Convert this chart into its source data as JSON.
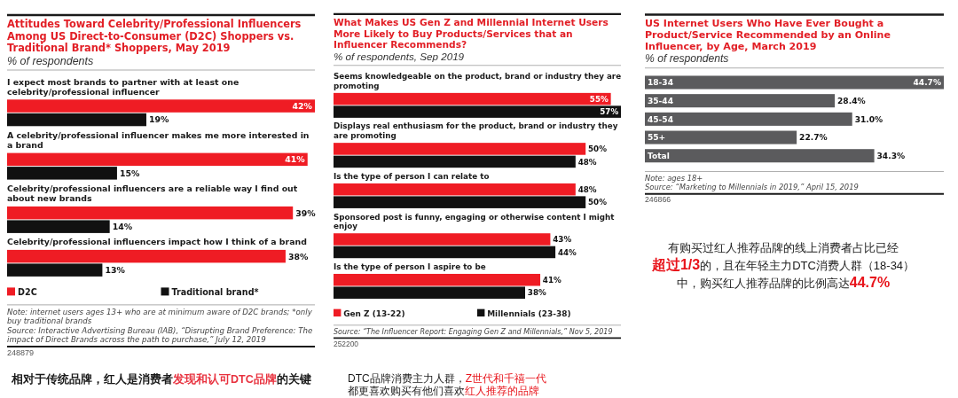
{
  "chart_data": [
    {
      "type": "bar",
      "orientation": "horizontal",
      "title": "Attitudes Toward Celebrity/Professional Influencers Among US Direct-to-Consumer (D2C) Shoppers vs. Traditional Brand* Shoppers, May 2019",
      "subtitle": "% of respondents",
      "categories": [
        "I expect most brands to partner with at least one celebrity/professional influencer",
        "A celebrity/professional influencer makes me more interested in a brand",
        "Celebrity/professional influencers are a reliable way I find out about new brands",
        "Celebrity/professional influencers impact how I think of a brand"
      ],
      "series": [
        {
          "name": "D2C",
          "color": "#ef1c24",
          "values": [
            42,
            41,
            39,
            38
          ],
          "value_labels": [
            "42%",
            "41%",
            "39%",
            "38%"
          ]
        },
        {
          "name": "Traditional brand*",
          "color": "#111111",
          "values": [
            19,
            15,
            14,
            13
          ],
          "value_labels": [
            "19%",
            "15%",
            "14%",
            "13%"
          ]
        }
      ],
      "legend": "bottom",
      "annotations": [
        "Note: internet users ages 13+ who are at minimum aware of D2C brands; *only buy traditional brands",
        "Source: Interactive Advertising Bureau (IAB), “Disrupting Brand Preference: The impact of Direct Brands across the path to purchase,” July 12, 2019",
        "248879",
        "相对于传统品牌，红人是消费者",
        "发现和认可DTC品牌",
        "的关键"
      ]
    },
    {
      "type": "bar",
      "orientation": "horizontal",
      "title": "What Makes US Gen Z and Millennial Internet Users More Likely to Buy Products/Services that an Influencer Recommends?",
      "subtitle": "% of respondents, Sep 2019",
      "categories": [
        "Seems knowledgeable on the product, brand or industry they are promoting",
        "Displays real enthusiasm for the product, brand or industry they are promoting",
        "Is the type of person I can relate to",
        "Sponsored post is funny, engaging or otherwise content I might enjoy",
        "Is the type of person I aspire to be"
      ],
      "series": [
        {
          "name": "Gen Z (13-22)",
          "color": "#ef1c24",
          "values": [
            55,
            50,
            48,
            43,
            41
          ],
          "value_labels": [
            "55%",
            "50%",
            "48%",
            "43%",
            "41%"
          ]
        },
        {
          "name": "Millennials (23-38)",
          "color": "#111111",
          "values": [
            57,
            48,
            50,
            44,
            38
          ],
          "value_labels": [
            "57%",
            "48%",
            "50%",
            "44%",
            "38%"
          ]
        }
      ],
      "legend": "bottom",
      "annotations": [
        "Source: “The Influencer Report: Engaging Gen Z and Millennials,” Nov 5, 2019",
        "252200",
        "DTC品牌消费主力人群，",
        "Z世代和千禧一代",
        "都更喜欢购买有他们喜欢",
        "红人推荐的品牌"
      ]
    },
    {
      "type": "bar",
      "orientation": "horizontal",
      "title": "US Internet Users Who Have Ever Bought a Product/Service Recommended by an Online Influencer, by Age, March 2019",
      "subtitle": "% of respondents",
      "categories": [
        "18-34",
        "35-44",
        "45-54",
        "55+",
        "Total"
      ],
      "values": [
        44.7,
        28.4,
        31.0,
        22.7,
        34.3
      ],
      "value_labels": [
        "44.7%",
        "28.4%",
        "31.0%",
        "22.7%",
        "34.3%"
      ],
      "color": "#5b5b5d",
      "annotations": [
        "Note: ages 18+",
        "Source: “Marketing to Millennials in 2019,” April 15, 2019",
        "246866",
        "有购买过红人推荐品牌的线上消费者占比已经",
        "超过1/3",
        "的，且在年轻主力DTC消费人群（18-34）",
        "中，购买红人推荐品牌的比例高达",
        "44.7%"
      ]
    }
  ]
}
